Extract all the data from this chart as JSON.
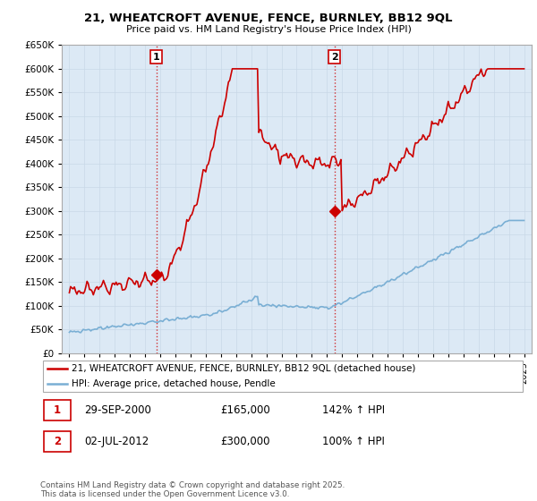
{
  "title": "21, WHEATCROFT AVENUE, FENCE, BURNLEY, BB12 9QL",
  "subtitle": "Price paid vs. HM Land Registry's House Price Index (HPI)",
  "red_label": "21, WHEATCROFT AVENUE, FENCE, BURNLEY, BB12 9QL (detached house)",
  "blue_label": "HPI: Average price, detached house, Pendle",
  "annotation1_date": "29-SEP-2000",
  "annotation1_price": "£165,000",
  "annotation1_hpi": "142% ↑ HPI",
  "annotation2_date": "02-JUL-2012",
  "annotation2_price": "£300,000",
  "annotation2_hpi": "100% ↑ HPI",
  "sale1_x": 2000.75,
  "sale1_y": 165000,
  "sale2_x": 2012.5,
  "sale2_y": 300000,
  "copyright": "Contains HM Land Registry data © Crown copyright and database right 2025.\nThis data is licensed under the Open Government Licence v3.0.",
  "ylim": [
    0,
    650000
  ],
  "xlim": [
    1994.5,
    2025.5
  ],
  "red_color": "#cc0000",
  "blue_color": "#7aafd4",
  "fill_color": "#dce9f5",
  "background_color": "#ffffff"
}
